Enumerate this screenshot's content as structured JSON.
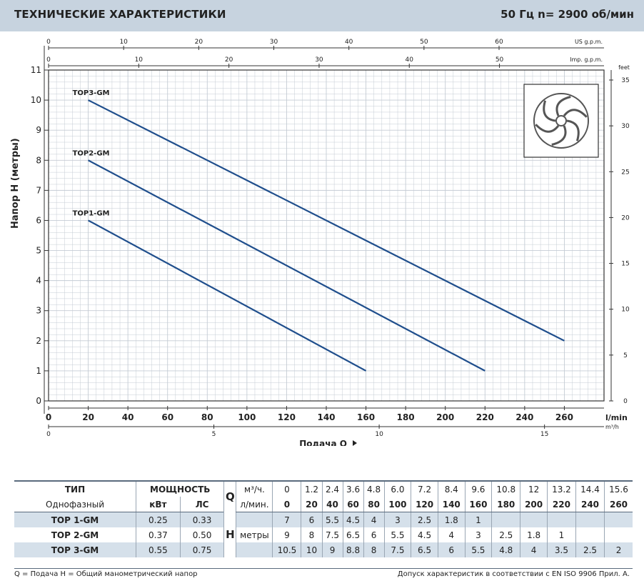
{
  "header": {
    "title": "ТЕХНИЧЕСКИЕ ХАРАКТЕРИСТИКИ",
    "right": "50 Гц   n= 2900 об/мин"
  },
  "chart_data": {
    "type": "line",
    "ylabel": "Напор H (метры)",
    "xlabel": "Подача Q",
    "x_unit": "l/min",
    "xlim": [
      0,
      280
    ],
    "ylim": [
      0,
      11
    ],
    "grid": true,
    "x_ticks": [
      0,
      20,
      40,
      60,
      80,
      100,
      120,
      140,
      160,
      180,
      200,
      220,
      240,
      260
    ],
    "y_ticks": [
      0,
      1,
      2,
      3,
      4,
      5,
      6,
      7,
      8,
      9,
      10,
      11
    ],
    "axes_secondary": {
      "us_gpm": {
        "unit": "US g.p.m.",
        "ticks": [
          0,
          10,
          20,
          30,
          40,
          50,
          60
        ]
      },
      "imp_gpm": {
        "unit": "Imp. g.p.m.",
        "ticks": [
          0,
          10,
          20,
          30,
          40,
          50
        ]
      },
      "m3h": {
        "unit": "m³/h",
        "ticks": [
          0,
          5,
          10,
          15
        ]
      },
      "feet": {
        "unit": "feet",
        "ticks": [
          0,
          5,
          10,
          15,
          20,
          25,
          30,
          35
        ]
      }
    },
    "series": [
      {
        "name": "TOP1-GM",
        "x": [
          20,
          160
        ],
        "y": [
          6,
          1
        ]
      },
      {
        "name": "TOP2-GM",
        "x": [
          20,
          220
        ],
        "y": [
          8,
          1
        ]
      },
      {
        "name": "TOP3-GM",
        "x": [
          20,
          260
        ],
        "y": [
          10,
          2
        ]
      }
    ],
    "colors": {
      "line": "#1f4e8c",
      "grid": "#c5ccd4",
      "axis": "#333333"
    }
  },
  "table": {
    "h_type": "ТИП",
    "h_power": "МОЩНОСТЬ",
    "h_q": "Q",
    "h_m3h": "м³/ч.",
    "h_lmin": "л/мин.",
    "h_phase": "Однофазный",
    "h_kw": "кВт",
    "h_hp": "ЛС",
    "h_h": "H",
    "h_meters": "метры",
    "m3h": [
      "0",
      "1.2",
      "2.4",
      "3.6",
      "4.8",
      "6.0",
      "7.2",
      "8.4",
      "9.6",
      "10.8",
      "12",
      "13.2",
      "14.4",
      "15.6"
    ],
    "lmin": [
      "0",
      "20",
      "40",
      "60",
      "80",
      "100",
      "120",
      "140",
      "160",
      "180",
      "200",
      "220",
      "240",
      "260"
    ],
    "rows": [
      {
        "name": "TOP 1-GM",
        "kw": "0.25",
        "hp": "0.33",
        "h": [
          "7",
          "6",
          "5.5",
          "4.5",
          "4",
          "3",
          "2.5",
          "1.8",
          "1",
          "",
          "",
          "",
          "",
          ""
        ]
      },
      {
        "name": "TOP 2-GM",
        "kw": "0.37",
        "hp": "0.50",
        "h": [
          "9",
          "8",
          "7.5",
          "6.5",
          "6",
          "5.5",
          "4.5",
          "4",
          "3",
          "2.5",
          "1.8",
          "1",
          "",
          ""
        ]
      },
      {
        "name": "TOP 3-GM",
        "kw": "0.55",
        "hp": "0.75",
        "h": [
          "10.5",
          "10",
          "9",
          "8.8",
          "8",
          "7.5",
          "6.5",
          "6",
          "5.5",
          "4.8",
          "4",
          "3.5",
          "2.5",
          "2"
        ]
      }
    ]
  },
  "footer": {
    "left": "Q = Подача  H = Общий манометрический напор",
    "right": "Допуск характеристик в соответствии с EN ISO 9906 Прил. А."
  }
}
